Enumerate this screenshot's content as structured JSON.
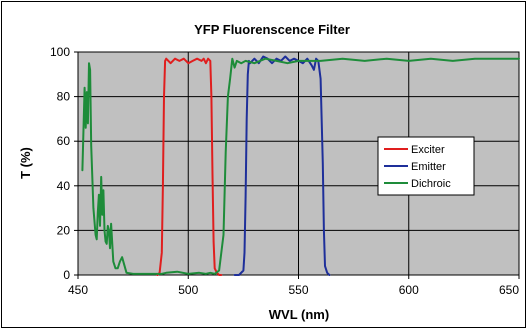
{
  "chart_data": {
    "type": "line",
    "title": "YFP Fluorenscence Filter",
    "xlabel": "WVL (nm)",
    "ylabel": "T (%)",
    "xlim": [
      450,
      650
    ],
    "ylim": [
      0,
      100
    ],
    "xticks": [
      450,
      500,
      550,
      600,
      650
    ],
    "yticks": [
      0,
      20,
      40,
      60,
      80,
      100
    ],
    "grid": true,
    "plot_background": "#C0C0C0",
    "legend_position": "right",
    "series": [
      {
        "name": "Exciter",
        "color": "#E01E1E",
        "x": [
          486,
          487,
          488,
          488.5,
          489,
          489.5,
          490,
          492,
          494,
          496,
          498,
          500,
          502,
          504,
          506,
          507,
          508,
          509,
          510,
          510.5,
          511,
          511.5,
          512,
          513,
          514,
          515
        ],
        "y": [
          0,
          1,
          10,
          40,
          80,
          96,
          97,
          95,
          97,
          96,
          97,
          95,
          96,
          97,
          96,
          97,
          95,
          97,
          96,
          80,
          45,
          15,
          3,
          1,
          0,
          0
        ]
      },
      {
        "name": "Emitter",
        "color": "#1E2F9A",
        "x": [
          521,
          523,
          525,
          525.5,
          526,
          526.5,
          527,
          527.5,
          528,
          530,
          532,
          534,
          536,
          538,
          540,
          542,
          544,
          546,
          548,
          550,
          552,
          554,
          556,
          557,
          558,
          559,
          560,
          561,
          561.5,
          562,
          563,
          564
        ],
        "y": [
          0,
          0,
          2,
          10,
          35,
          70,
          90,
          96,
          95,
          97,
          95,
          98,
          97,
          95,
          97,
          96,
          98,
          96,
          97,
          96,
          95,
          97,
          94,
          92,
          97,
          96,
          88,
          50,
          20,
          4,
          1,
          0
        ]
      },
      {
        "name": "Dichroic",
        "color": "#1E8C3A",
        "x": [
          452,
          453,
          453.5,
          454,
          454.5,
          455,
          455.5,
          456,
          457,
          458,
          458.5,
          459,
          459.5,
          460,
          460.5,
          461,
          461.5,
          462,
          462.5,
          463,
          463.5,
          464,
          464.5,
          465,
          466,
          467,
          468,
          469,
          470,
          472,
          475,
          480,
          485,
          488,
          490,
          495,
          500,
          505,
          508,
          510,
          512,
          514,
          516,
          517,
          518,
          519,
          520,
          521,
          522,
          524,
          526,
          530,
          535,
          540,
          545,
          550,
          560,
          570,
          580,
          590,
          600,
          610,
          620,
          630,
          640,
          650
        ],
        "y": [
          47,
          84,
          66,
          82,
          68,
          95,
          92,
          58,
          30,
          18,
          16,
          28,
          36,
          22,
          44,
          27,
          38,
          20,
          15,
          14,
          22,
          20,
          12,
          23,
          6,
          3,
          3,
          6,
          8,
          1,
          0.5,
          0.5,
          0.5,
          0.5,
          1,
          1.5,
          0.5,
          1,
          0.5,
          1,
          0.5,
          2,
          18,
          55,
          80,
          88,
          97,
          93,
          96,
          95,
          96,
          95,
          97,
          96,
          95,
          96,
          96,
          97,
          96,
          97,
          96,
          97,
          96,
          97,
          97,
          97
        ]
      }
    ]
  }
}
